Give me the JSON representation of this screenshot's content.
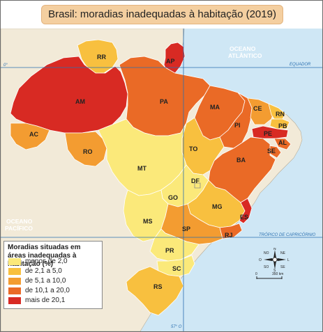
{
  "title": "Brasil: moradias inadequadas à habitação (2019)",
  "oceans": {
    "atlantic_1": "OCEANO",
    "atlantic_2": "ATLÂNTICO",
    "pacific_1": "OCEANO",
    "pacific_2": "PACÍFICO"
  },
  "lines": {
    "equator": "EQUADOR",
    "equator_lat": "0°",
    "capricorn": "TRÓPICO DE CAPRICÓRNIO",
    "meridian": "57° O"
  },
  "legend": {
    "title": "Moradias situadas em áreas inadequadas à habitação (%)",
    "items": [
      {
        "label": "menos de 2,0",
        "color": "#fbe97a"
      },
      {
        "label": "de 2,1 a 5,0",
        "color": "#f8c03f"
      },
      {
        "label": "de 5,1 a 10,0",
        "color": "#f39c31"
      },
      {
        "label": "de 10,1 a 20,0",
        "color": "#ea6a26"
      },
      {
        "label": "mais de 20,1",
        "color": "#d82a23"
      }
    ]
  },
  "compass": {
    "n": "N",
    "s": "S",
    "l": "L",
    "o": "O",
    "ne": "NE",
    "no": "NO",
    "se": "SE",
    "so": "SO"
  },
  "scale": {
    "start": "0",
    "end": "350 km"
  },
  "states": {
    "RR": "RR",
    "AP": "AP",
    "AM": "AM",
    "PA": "PA",
    "MA": "MA",
    "CE": "CE",
    "RN": "RN",
    "PB": "PB",
    "PI": "PI",
    "PE": "PE",
    "AL": "AL",
    "SE": "SE",
    "BA": "BA",
    "AC": "AC",
    "RO": "RO",
    "TO": "TO",
    "MT": "MT",
    "DF": "DF",
    "GO": "GO",
    "MG": "MG",
    "ES": "ES",
    "MS": "MS",
    "SP": "SP",
    "RJ": "RJ",
    "PR": "PR",
    "SC": "SC",
    "RS": "RS"
  }
}
